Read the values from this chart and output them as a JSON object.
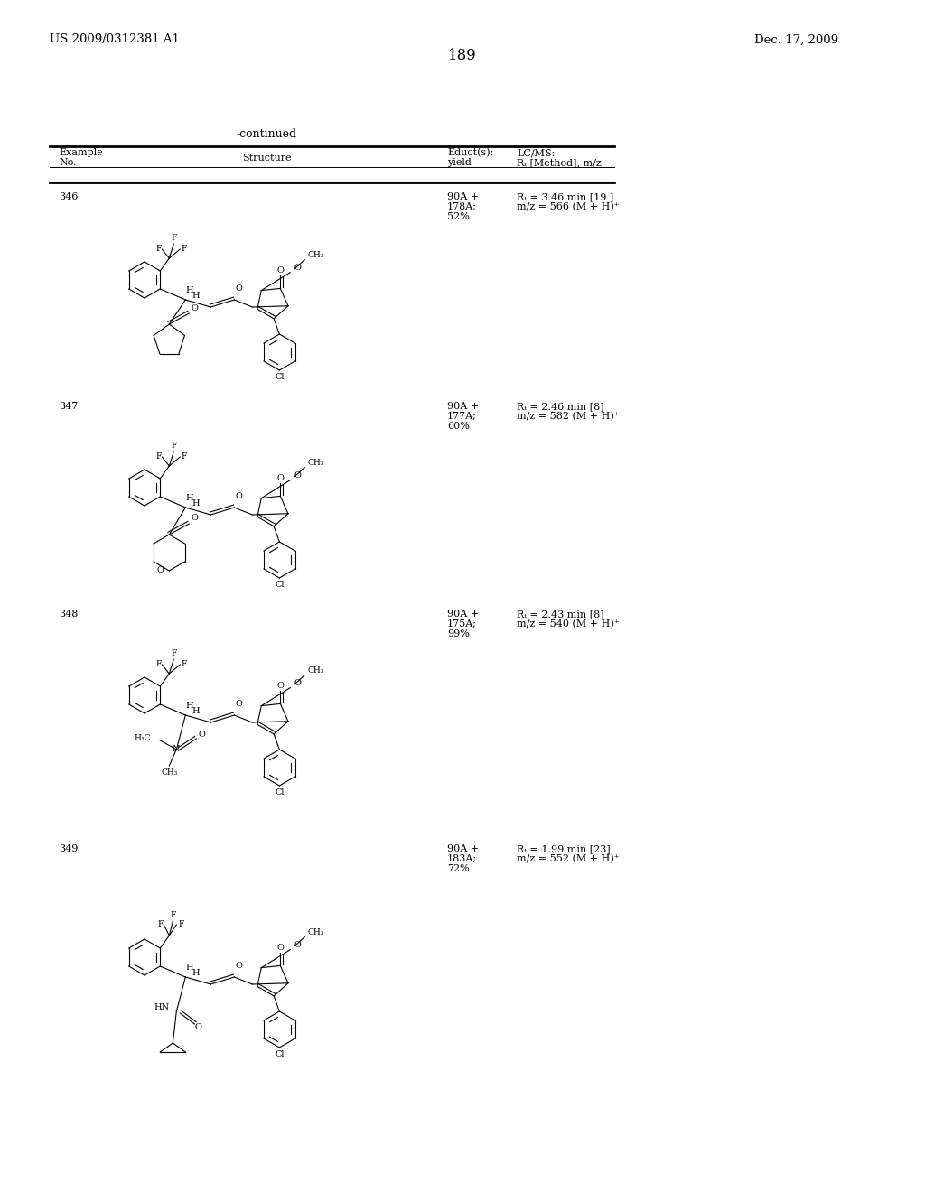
{
  "patent_number": "US 2009/0312381 A1",
  "patent_date": "Dec. 17, 2009",
  "page_number": "189",
  "continued": "-continued",
  "col1": "Example",
  "col2": "No.",
  "col3": "Structure",
  "col4a": "Educt(s);",
  "col4b": "yield",
  "col5a": "LC/MS:",
  "col5b": "Rₜ [Method], m/z",
  "rows": [
    {
      "no": "346",
      "educt1": "90A +",
      "educt2": "178A;",
      "educt3": "52%",
      "lcms1": "Rₜ = 3.46 min [19 ]",
      "lcms2": "m/z = 566 (M + H)⁺"
    },
    {
      "no": "347",
      "educt1": "90A +",
      "educt2": "177A;",
      "educt3": "60%",
      "lcms1": "Rₜ = 2.46 min [8]",
      "lcms2": "m/z = 582 (M + H)⁺"
    },
    {
      "no": "348",
      "educt1": "90A +",
      "educt2": "175A;",
      "educt3": "99%",
      "lcms1": "Rₜ = 2.43 min [8]",
      "lcms2": "m/z = 540 (M + H)⁺"
    },
    {
      "no": "349",
      "educt1": "90A +",
      "educt2": "183A;",
      "educt3": "72%",
      "lcms1": "Rₜ = 1.99 min [23]",
      "lcms2": "m/z = 552 (M + H)⁺"
    }
  ]
}
